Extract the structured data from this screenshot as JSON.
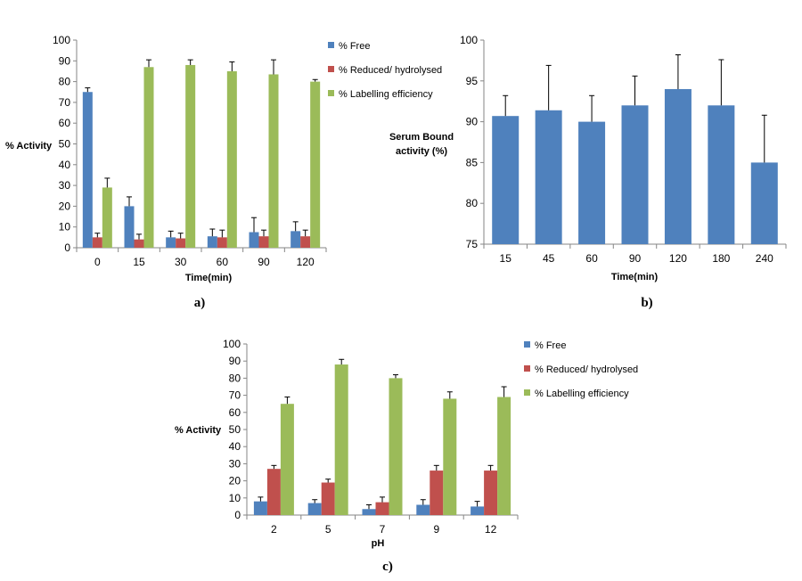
{
  "colors": {
    "free": "#4F81BD",
    "reduced": "#C0504D",
    "labelling": "#9BBB59",
    "axis": "#868686",
    "error": "#000000"
  },
  "chart_data": [
    {
      "panel": "a)",
      "type": "bar",
      "ylabel": "% Activity",
      "xlabel": "Time(min)",
      "ylim": [
        0,
        100
      ],
      "yticks": [
        0,
        10,
        20,
        30,
        40,
        50,
        60,
        70,
        80,
        90,
        100
      ],
      "legend_position": "right",
      "categories": [
        "0",
        "15",
        "30",
        "60",
        "90",
        "120"
      ],
      "series": [
        {
          "name": "% Free",
          "color_key": "free",
          "values": [
            75,
            20,
            5,
            5.5,
            7.5,
            8
          ],
          "errors": [
            2,
            4.5,
            3,
            3.5,
            7,
            4.5
          ]
        },
        {
          "name": "% Reduced/ hydrolysed",
          "color_key": "reduced",
          "values": [
            5,
            4,
            4.5,
            5,
            5.5,
            5.5
          ],
          "errors": [
            2,
            2.5,
            2.5,
            3.5,
            3,
            3
          ]
        },
        {
          "name": "% Labelling efficiency",
          "color_key": "labelling",
          "values": [
            29,
            87,
            88,
            85,
            83.5,
            80
          ],
          "errors": [
            4.5,
            3.5,
            2.5,
            4.5,
            7,
            1
          ]
        }
      ]
    },
    {
      "panel": "b)",
      "type": "bar",
      "ylabel_lines": [
        "Serum Bound",
        "activity (%)"
      ],
      "xlabel": "Time(min)",
      "ylim": [
        75,
        100
      ],
      "yticks": [
        75,
        80,
        85,
        90,
        95,
        100
      ],
      "categories": [
        "15",
        "45",
        "60",
        "90",
        "120",
        "180",
        "240"
      ],
      "series": [
        {
          "name": "Serum Bound activity (%)",
          "color_key": "free",
          "values": [
            90.7,
            91.4,
            90,
            92,
            94,
            92,
            85
          ],
          "errors": [
            2.5,
            5.5,
            3.2,
            3.6,
            4.2,
            5.6,
            5.8
          ]
        }
      ]
    },
    {
      "panel": "c)",
      "type": "bar",
      "ylabel": "% Activity",
      "xlabel": "pH",
      "ylim": [
        0,
        100
      ],
      "yticks": [
        0,
        10,
        20,
        30,
        40,
        50,
        60,
        70,
        80,
        90,
        100
      ],
      "legend_position": "right",
      "categories": [
        "2",
        "5",
        "7",
        "9",
        "12"
      ],
      "series": [
        {
          "name": "% Free",
          "color_key": "free",
          "values": [
            8,
            7,
            3.5,
            6,
            5
          ],
          "errors": [
            2.5,
            2,
            2.5,
            3,
            3
          ]
        },
        {
          "name": "% Reduced/ hydrolysed",
          "color_key": "reduced",
          "values": [
            27,
            19,
            7.5,
            26,
            26
          ],
          "errors": [
            2,
            2,
            3,
            3,
            3
          ]
        },
        {
          "name": "% Labelling efficiency",
          "color_key": "labelling",
          "values": [
            65,
            88,
            80,
            68,
            69
          ],
          "errors": [
            4,
            3,
            2,
            4,
            6
          ]
        }
      ]
    }
  ]
}
